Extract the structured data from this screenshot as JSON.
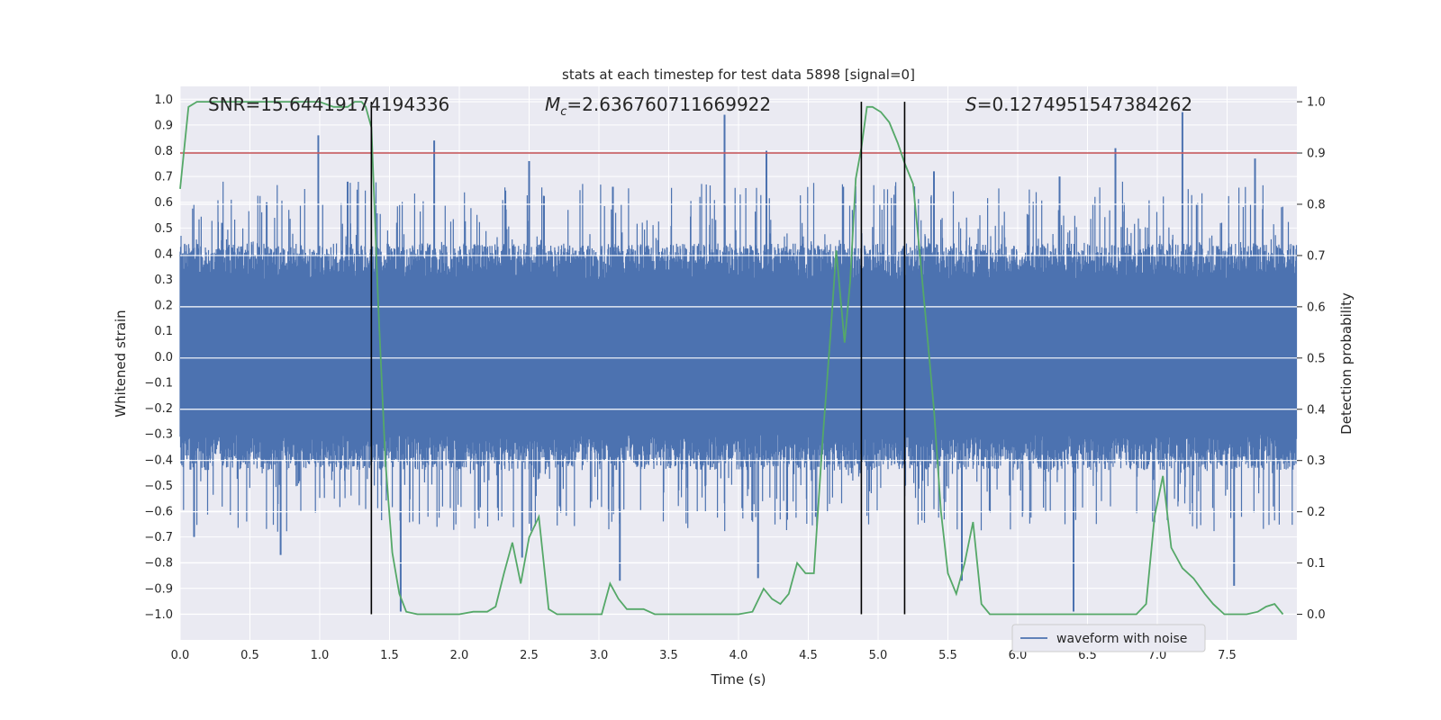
{
  "chart_data": {
    "type": "line",
    "title": "stats at each timestep for test data 5898 [signal=0]",
    "xlabel": "Time (s)",
    "ylabel_left": "Whitened strain",
    "ylabel_right": "Detection probability",
    "xlim": [
      0,
      8
    ],
    "ylim_left": [
      -1.1,
      1.05
    ],
    "ylim_right": [
      -0.05,
      1.03
    ],
    "x_ticks": [
      0.0,
      0.5,
      1.0,
      1.5,
      2.0,
      2.5,
      3.0,
      3.5,
      4.0,
      4.5,
      5.0,
      5.5,
      6.0,
      6.5,
      7.0,
      7.5
    ],
    "x_tick_labels": [
      "0.0",
      "0.5",
      "1.0",
      "1.5",
      "2.0",
      "2.5",
      "3.0",
      "3.5",
      "4.0",
      "4.5",
      "5.0",
      "5.5",
      "6.0",
      "6.5",
      "7.0",
      "7.5"
    ],
    "y_left_ticks": [
      1.0,
      0.9,
      0.8,
      0.7,
      0.6,
      0.5,
      0.4,
      0.3,
      0.2,
      0.1,
      0.0,
      -0.1,
      -0.2,
      -0.3,
      -0.4,
      -0.5,
      -0.6,
      -0.7,
      -0.8,
      -0.9,
      -1.0
    ],
    "y_left_tick_labels": [
      "1.0",
      "0.9",
      "0.8",
      "0.7",
      "0.6",
      "0.5",
      "0.4",
      "0.3",
      "0.2",
      "0.1",
      "0.0",
      "−0.1",
      "−0.2",
      "−0.3",
      "−0.4",
      "−0.5",
      "−0.6",
      "−0.7",
      "−0.8",
      "−0.9",
      "−1.0"
    ],
    "y_right_ticks": [
      0.0,
      0.1,
      0.2,
      0.3,
      0.4,
      0.5,
      0.6,
      0.7,
      0.8,
      0.9,
      1.0
    ],
    "y_right_tick_labels": [
      "0.0",
      "0.1",
      "0.2",
      "0.3",
      "0.4",
      "0.5",
      "0.6",
      "0.7",
      "0.8",
      "0.9",
      "1.0"
    ],
    "annotations": {
      "snr": "SNR=15.64419174194336",
      "mc_symbol": "M",
      "mc_sub": "c",
      "mc_value": "=2.636760711669922",
      "s_symbol": "S",
      "s_value": "=0.1274951547384262"
    },
    "threshold": {
      "value": 0.9,
      "axis": "right",
      "color": "#c44e52"
    },
    "vertical_lines": [
      1.37,
      4.88,
      5.19
    ],
    "waveform": {
      "name": "waveform with noise",
      "color": "#4c72b0",
      "description_envelope": "noise band roughly ±0.35 with spikes up to ±0.95",
      "spikes": [
        {
          "x": 0.05,
          "v": 0.4
        },
        {
          "x": 0.3,
          "v": 0.52
        },
        {
          "x": 0.62,
          "v": 0.6
        },
        {
          "x": 0.99,
          "v": 0.86
        },
        {
          "x": 1.2,
          "v": 0.68
        },
        {
          "x": 1.82,
          "v": 0.84
        },
        {
          "x": 2.5,
          "v": 0.76
        },
        {
          "x": 3.1,
          "v": 0.66
        },
        {
          "x": 3.9,
          "v": 0.94
        },
        {
          "x": 4.2,
          "v": 0.8
        },
        {
          "x": 4.75,
          "v": 0.66
        },
        {
          "x": 5.4,
          "v": 0.72
        },
        {
          "x": 6.3,
          "v": 0.7
        },
        {
          "x": 6.7,
          "v": 0.81
        },
        {
          "x": 7.18,
          "v": 0.95
        },
        {
          "x": 7.7,
          "v": 0.77
        },
        {
          "x": 0.1,
          "v": -0.7
        },
        {
          "x": 0.72,
          "v": -0.77
        },
        {
          "x": 1.58,
          "v": -0.99
        },
        {
          "x": 2.45,
          "v": -0.78
        },
        {
          "x": 3.15,
          "v": -0.87
        },
        {
          "x": 4.14,
          "v": -0.86
        },
        {
          "x": 5.6,
          "v": -0.87
        },
        {
          "x": 6.4,
          "v": -0.99
        },
        {
          "x": 7.55,
          "v": -0.89
        }
      ]
    },
    "detection_probability": {
      "color": "#55a868",
      "x": [
        0.0,
        0.06,
        0.12,
        0.2,
        0.4,
        0.6,
        0.8,
        1.0,
        1.1,
        1.2,
        1.25,
        1.3,
        1.33,
        1.37,
        1.42,
        1.47,
        1.52,
        1.57,
        1.62,
        1.7,
        1.8,
        2.0,
        2.1,
        2.2,
        2.26,
        2.32,
        2.38,
        2.44,
        2.5,
        2.57,
        2.64,
        2.7,
        2.8,
        2.88,
        2.95,
        3.02,
        3.08,
        3.14,
        3.2,
        3.26,
        3.32,
        3.4,
        3.5,
        3.6,
        3.7,
        3.8,
        3.9,
        4.0,
        4.1,
        4.18,
        4.24,
        4.3,
        4.36,
        4.42,
        4.48,
        4.54,
        4.6,
        4.66,
        4.7,
        4.76,
        4.8,
        4.84,
        4.88,
        4.92,
        4.96,
        5.02,
        5.08,
        5.14,
        5.19,
        5.25,
        5.3,
        5.35,
        5.4,
        5.45,
        5.5,
        5.56,
        5.62,
        5.68,
        5.74,
        5.8,
        5.9,
        6.1,
        6.3,
        6.5,
        6.7,
        6.85,
        6.92,
        6.98,
        7.04,
        7.1,
        7.18,
        7.26,
        7.34,
        7.4,
        7.48,
        7.56,
        7.64,
        7.72,
        7.78,
        7.84,
        7.9
      ],
      "y": [
        0.83,
        0.99,
        1.0,
        1.0,
        1.0,
        1.0,
        1.0,
        1.0,
        0.99,
        0.99,
        1.0,
        1.0,
        0.99,
        0.95,
        0.6,
        0.3,
        0.12,
        0.04,
        0.005,
        0.0,
        0.0,
        0.0,
        0.005,
        0.005,
        0.015,
        0.08,
        0.14,
        0.06,
        0.15,
        0.19,
        0.01,
        0.0,
        0.0,
        0.0,
        0.0,
        0.0,
        0.06,
        0.03,
        0.01,
        0.01,
        0.01,
        0.0,
        0.0,
        0.0,
        0.0,
        0.0,
        0.0,
        0.0,
        0.005,
        0.05,
        0.03,
        0.02,
        0.04,
        0.1,
        0.08,
        0.08,
        0.33,
        0.55,
        0.71,
        0.53,
        0.65,
        0.85,
        0.91,
        0.99,
        0.99,
        0.98,
        0.96,
        0.92,
        0.88,
        0.84,
        0.7,
        0.55,
        0.4,
        0.2,
        0.08,
        0.04,
        0.1,
        0.18,
        0.02,
        0.0,
        0.0,
        0.0,
        0.0,
        0.0,
        0.0,
        0.0,
        0.02,
        0.19,
        0.27,
        0.13,
        0.09,
        0.07,
        0.04,
        0.02,
        0.0,
        0.0,
        0.0,
        0.005,
        0.015,
        0.02,
        0.0
      ]
    },
    "legend": {
      "position": "lower-right",
      "entries": [
        "waveform with noise"
      ]
    }
  }
}
